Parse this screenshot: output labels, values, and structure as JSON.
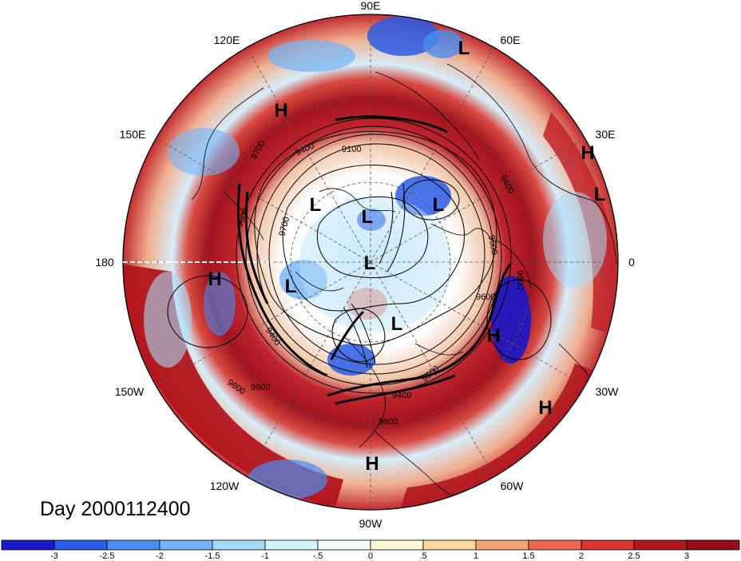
{
  "date_label": "Day 2000112400",
  "longitude_labels": {
    "e90": "90E",
    "e120": "120E",
    "e60": "60E",
    "e150": "150E",
    "e30": "30E",
    "w180": "180",
    "zero": "0",
    "w150": "150W",
    "w30": "30W",
    "w120": "120W",
    "w60": "60W",
    "w90": "90W"
  },
  "pressure_systems": [
    {
      "label": "L"
    },
    {
      "label": "H"
    },
    {
      "label": "H"
    },
    {
      "label": "L"
    },
    {
      "label": "L"
    },
    {
      "label": "L"
    },
    {
      "label": "L"
    },
    {
      "label": "L"
    },
    {
      "label": "H"
    },
    {
      "label": "L"
    },
    {
      "label": "L"
    },
    {
      "label": "H"
    },
    {
      "label": "H"
    },
    {
      "label": "H"
    }
  ],
  "contour_labels": [
    "9700",
    "9600",
    "9400",
    "9100",
    "9400",
    "9700",
    "9600",
    "9600",
    "9400",
    "9600",
    "9500",
    "9400",
    "9600",
    "9600",
    "9600"
  ],
  "colorbar": {
    "ticks": [
      "-3",
      "-2.5",
      "-2",
      "-1.5",
      "-1",
      "-.5",
      "0",
      ".5",
      "1",
      "1.5",
      "2",
      "2.5",
      "3"
    ],
    "colors": [
      "#1a18c8",
      "#2a5ce6",
      "#4a8cf0",
      "#72b4f6",
      "#a6dcfa",
      "#d2f2fc",
      "#f4fcfe",
      "#fdf6d4",
      "#fbd79c",
      "#f4a474",
      "#ec6854",
      "#d83434",
      "#b01820",
      "#960e18"
    ]
  },
  "colors": {
    "strong_positive": "#a0141e",
    "positive": "#d63a34",
    "weak_positive": "#f5b086",
    "neutral": "#f4fbfd",
    "weak_negative": "#bde6f8",
    "negative": "#5a9ee8",
    "strong_negative": "#2030c8"
  }
}
